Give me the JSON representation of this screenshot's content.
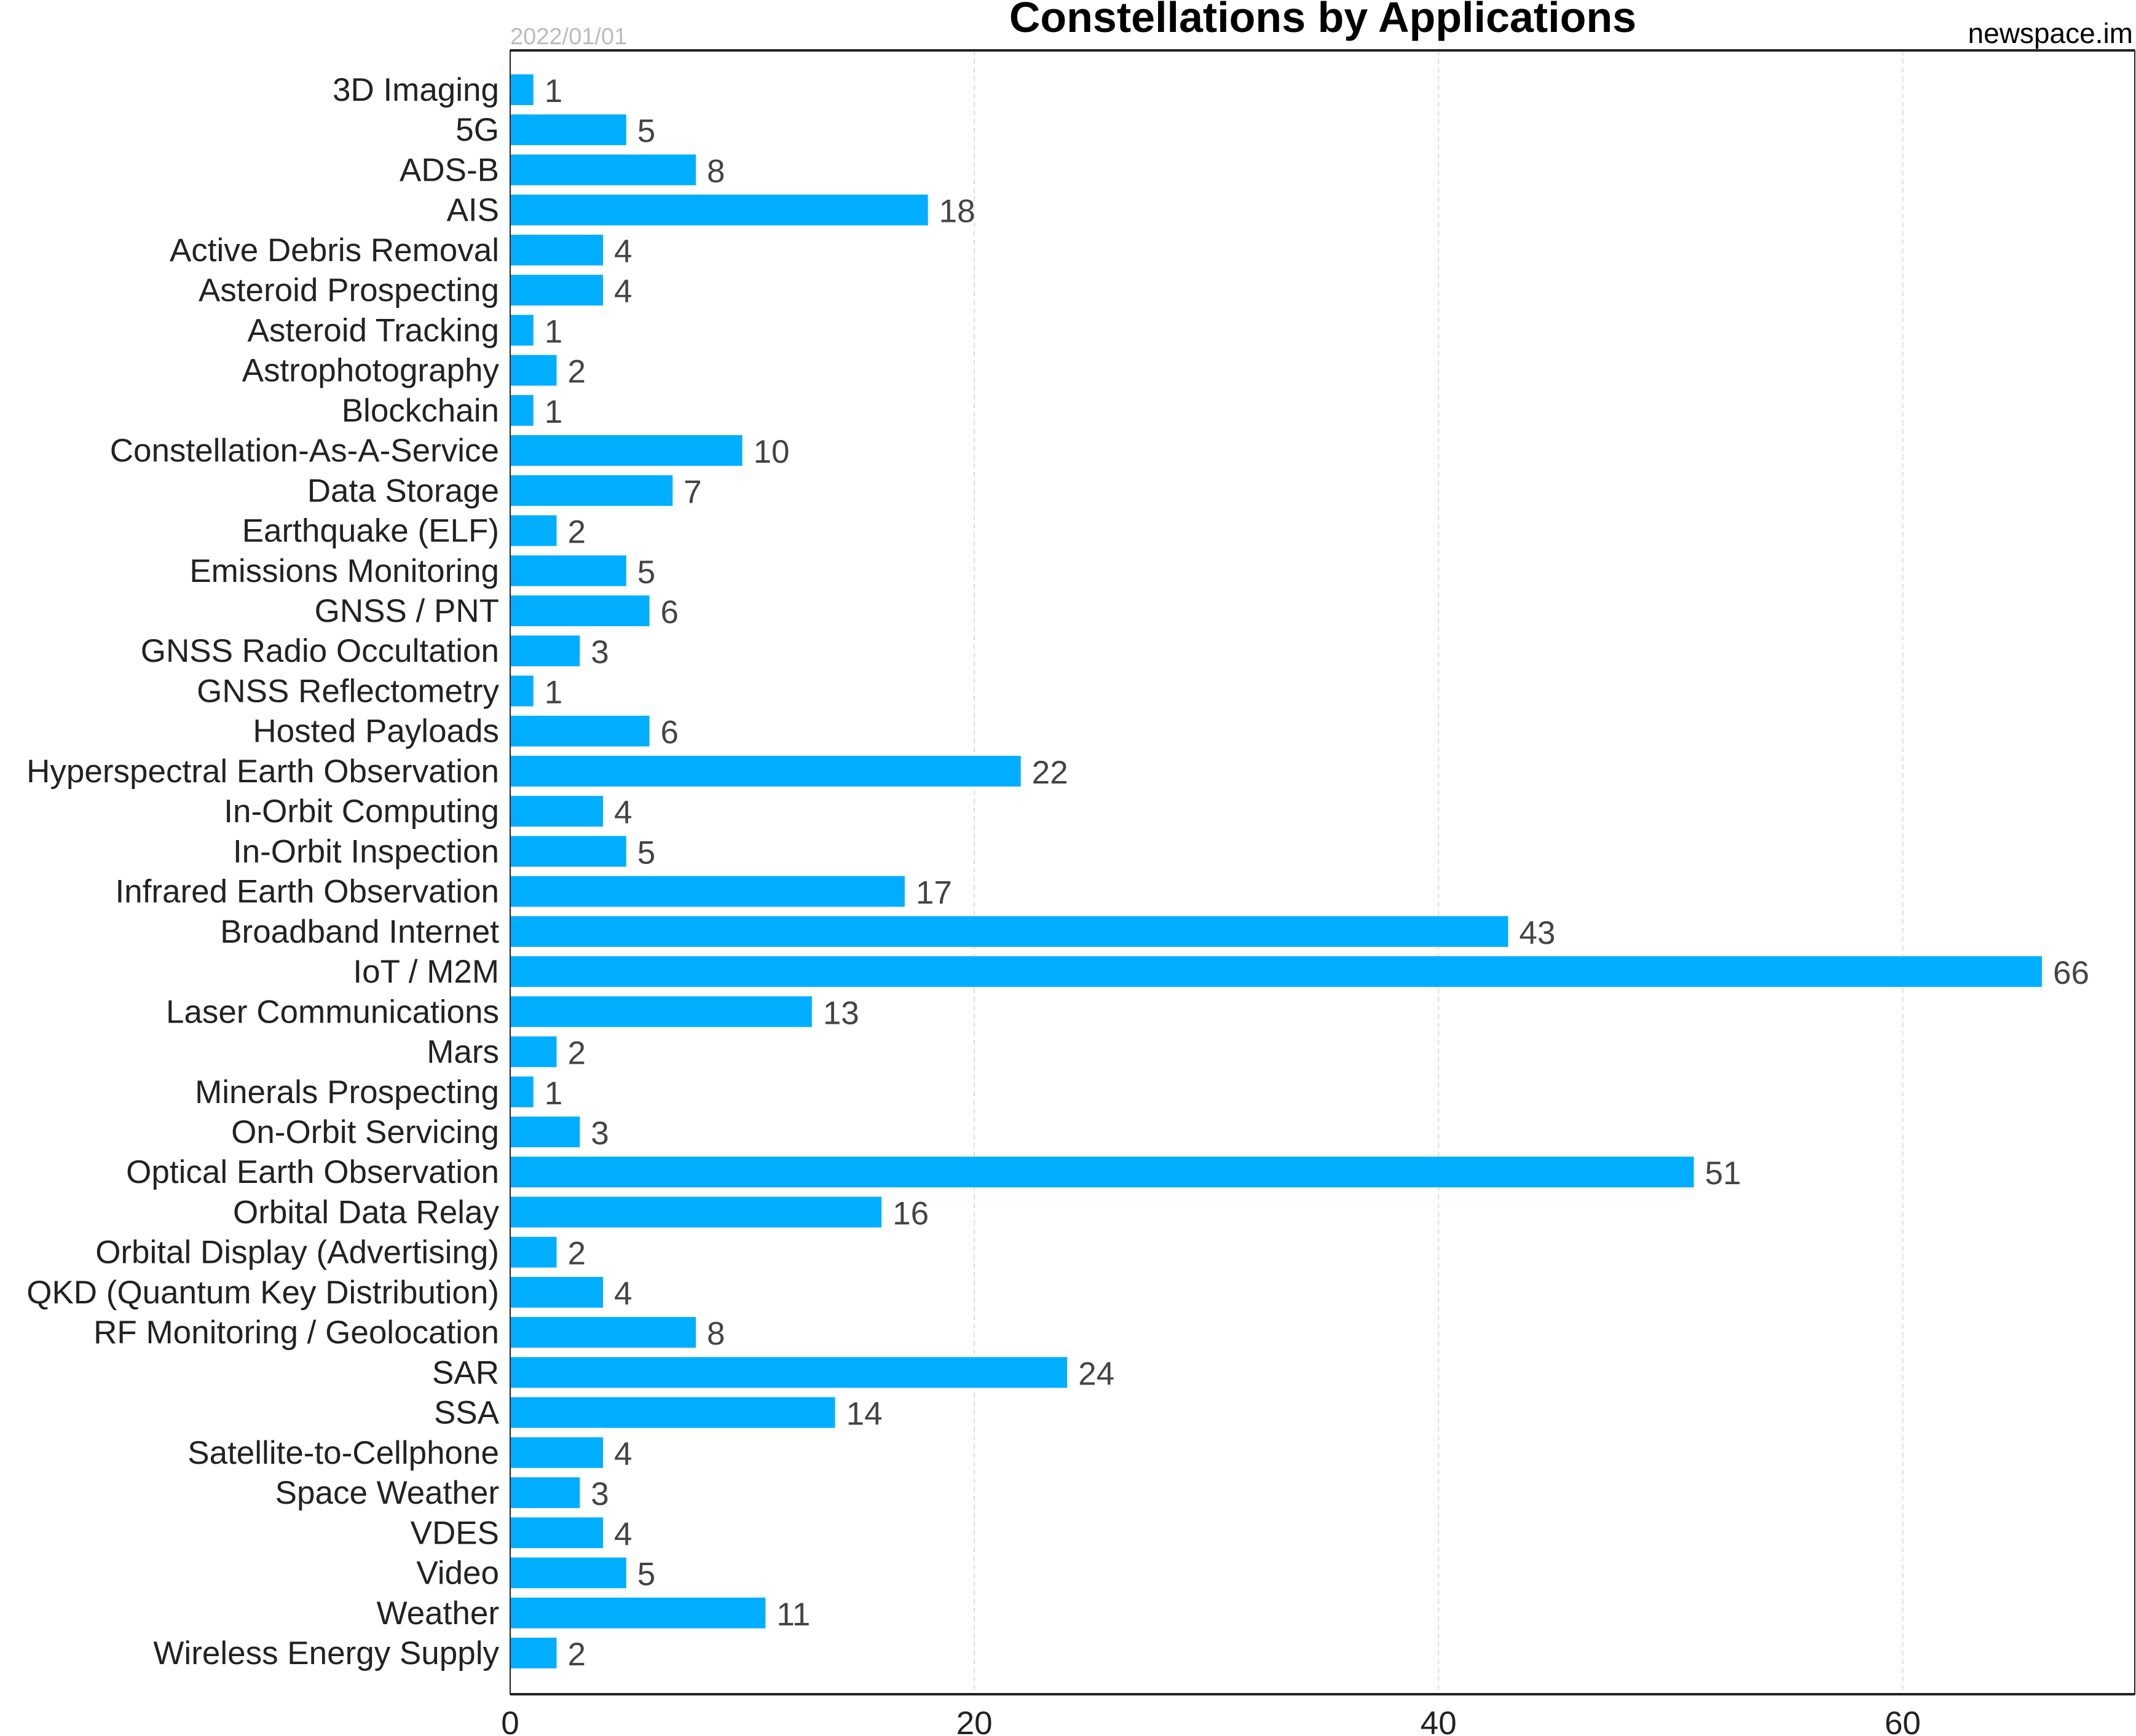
{
  "chart_data": {
    "type": "bar",
    "orientation": "horizontal",
    "title": "Constellations by Applications",
    "date_label": "2022/01/01",
    "source_label": "newspace.im",
    "xlim": [
      0,
      70
    ],
    "xticks": [
      0,
      20,
      40,
      60
    ],
    "grid": true,
    "bar_color": "#00AEFF",
    "categories": [
      "3D Imaging",
      "5G",
      "ADS-B",
      "AIS",
      "Active Debris Removal",
      "Asteroid Prospecting",
      "Asteroid Tracking",
      "Astrophotography",
      "Blockchain",
      "Constellation-As-A-Service",
      "Data Storage",
      "Earthquake (ELF)",
      "Emissions Monitoring",
      "GNSS / PNT",
      "GNSS Radio Occultation",
      "GNSS Reflectometry",
      "Hosted Payloads",
      "Hyperspectral Earth Observation",
      "In-Orbit Computing",
      "In-Orbit Inspection",
      "Infrared Earth Observation",
      "Broadband Internet",
      "IoT / M2M",
      "Laser Communications",
      "Mars",
      "Minerals Prospecting",
      "On-Orbit Servicing",
      "Optical Earth Observation",
      "Orbital Data Relay",
      "Orbital Display (Advertising)",
      "QKD (Quantum Key Distribution)",
      "RF Monitoring / Geolocation",
      "SAR",
      "SSA",
      "Satellite-to-Cellphone",
      "Space Weather",
      "VDES",
      "Video",
      "Weather",
      "Wireless Energy Supply"
    ],
    "values": [
      1,
      5,
      8,
      18,
      4,
      4,
      1,
      2,
      1,
      10,
      7,
      2,
      5,
      6,
      3,
      1,
      6,
      22,
      4,
      5,
      17,
      43,
      66,
      13,
      2,
      1,
      3,
      51,
      16,
      2,
      4,
      8,
      24,
      14,
      4,
      3,
      4,
      5,
      11,
      2
    ]
  }
}
